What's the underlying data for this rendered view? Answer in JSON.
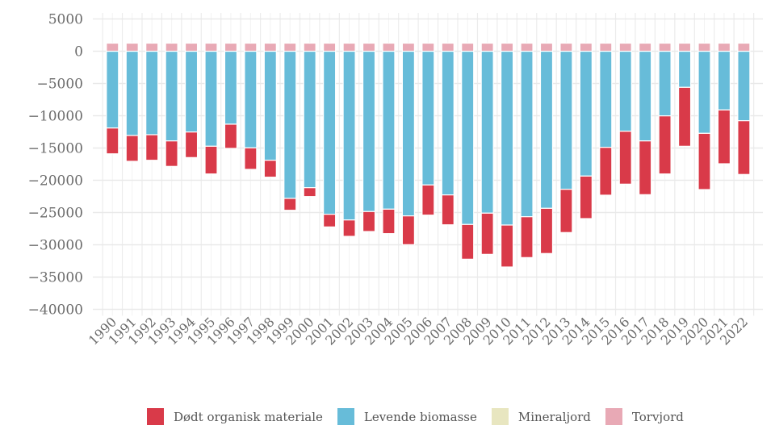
{
  "chart_data": {
    "type": "bar",
    "stacked": true,
    "title": "",
    "xlabel": "",
    "ylabel": "",
    "ylim": [
      -40000,
      5000
    ],
    "yticks": [
      5000,
      0,
      -5000,
      -10000,
      -15000,
      -20000,
      -25000,
      -30000,
      -35000,
      -40000
    ],
    "ytick_labels": [
      "5000",
      "0",
      "−5000",
      "−10000",
      "−15000",
      "−20000",
      "−25000",
      "−30000",
      "−35000",
      "−40000"
    ],
    "grid": true,
    "legend_position": "bottom",
    "categories": [
      "1990",
      "1991",
      "1992",
      "1993",
      "1994",
      "1995",
      "1996",
      "1997",
      "1998",
      "1999",
      "2000",
      "2001",
      "2002",
      "2003",
      "2004",
      "2005",
      "2006",
      "2007",
      "2008",
      "2009",
      "2010",
      "2011",
      "2012",
      "2013",
      "2014",
      "2015",
      "2016",
      "2017",
      "2018",
      "2019",
      "2020",
      "2021",
      "2022"
    ],
    "series": [
      {
        "name": "Dødt organisk materiale",
        "color": "#d93a49",
        "values": [
          -4000,
          -4000,
          -3960,
          -3950,
          -3960,
          -4290,
          -3750,
          -3330,
          -2620,
          -1840,
          -1370,
          -1960,
          -2540,
          -3090,
          -3790,
          -4460,
          -4670,
          -4630,
          -5380,
          -6380,
          -6500,
          -6330,
          -7000,
          -6700,
          -6590,
          -7410,
          -8200,
          -8330,
          -9000,
          -9130,
          -8710,
          -8340,
          -8330
        ]
      },
      {
        "name": "Levende biomasse",
        "color": "#67bcd9",
        "values": [
          -11900,
          -13060,
          -12940,
          -13900,
          -12520,
          -14730,
          -11310,
          -14980,
          -16900,
          -22810,
          -21150,
          -25270,
          -26150,
          -24850,
          -24480,
          -25520,
          -20730,
          -22270,
          -26850,
          -25100,
          -26940,
          -25650,
          -24350,
          -21400,
          -19350,
          -14900,
          -12400,
          -13900,
          -10020,
          -5600,
          -12730,
          -9100,
          -10770
        ]
      },
      {
        "name": "Mineraljord",
        "color": "#e8e6c0",
        "values": [
          0,
          0,
          0,
          0,
          0,
          0,
          0,
          0,
          0,
          0,
          0,
          0,
          0,
          0,
          0,
          0,
          0,
          0,
          0,
          0,
          0,
          0,
          0,
          0,
          0,
          0,
          0,
          0,
          0,
          0,
          0,
          0,
          0
        ]
      },
      {
        "name": "Torvjord",
        "color": "#e8a9b5",
        "values": [
          1250,
          1250,
          1250,
          1250,
          1250,
          1250,
          1250,
          1250,
          1250,
          1250,
          1250,
          1250,
          1250,
          1250,
          1250,
          1250,
          1250,
          1250,
          1250,
          1250,
          1250,
          1250,
          1250,
          1250,
          1250,
          1250,
          1250,
          1250,
          1250,
          1250,
          1250,
          1250,
          1250
        ]
      }
    ]
  }
}
